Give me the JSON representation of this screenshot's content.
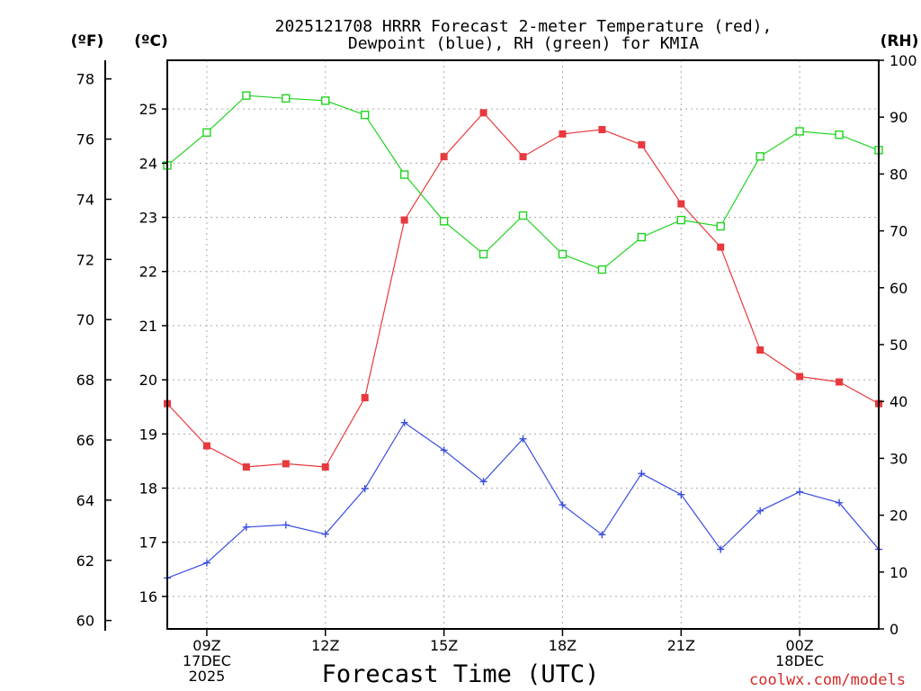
{
  "chart_data": {
    "type": "line",
    "title_lines": [
      "2025121708 HRRR Forecast 2-meter Temperature (red),",
      "Dewpoint (blue), RH (green) for KMIA"
    ],
    "xlabel": "Forecast Time (UTC)",
    "credit": "coolwx.com/models",
    "units": {
      "fahrenheit": "(ºF)",
      "celsius": "(ºC)",
      "rh": "(RH)"
    },
    "x_hours": [
      8,
      9,
      10,
      11,
      12,
      13,
      14,
      15,
      16,
      17,
      18,
      19,
      20,
      21,
      22,
      23,
      24,
      25,
      26
    ],
    "x_range": [
      8,
      26
    ],
    "x_ticks": [
      {
        "hour": 9,
        "lines": [
          "09Z",
          "17DEC",
          "2025"
        ]
      },
      {
        "hour": 12,
        "lines": [
          "12Z"
        ]
      },
      {
        "hour": 15,
        "lines": [
          "15Z"
        ]
      },
      {
        "hour": 18,
        "lines": [
          "18Z"
        ]
      },
      {
        "hour": 21,
        "lines": [
          "21Z"
        ]
      },
      {
        "hour": 24,
        "lines": [
          "00Z",
          "18DEC"
        ]
      }
    ],
    "celsius_range": [
      15.4,
      25.9
    ],
    "celsius_ticks": [
      16,
      17,
      18,
      19,
      20,
      21,
      22,
      23,
      24,
      25
    ],
    "fahrenheit_ticks": [
      60,
      62,
      64,
      66,
      68,
      70,
      72,
      74,
      76,
      78
    ],
    "rh_range": [
      0,
      100
    ],
    "rh_ticks": [
      0,
      10,
      20,
      30,
      40,
      50,
      60,
      70,
      80,
      90,
      100
    ],
    "colors": {
      "temperature": "#e8393d",
      "dewpoint": "#3a4fe0",
      "rh": "#20d420",
      "grid": "#aaaaaa",
      "axis": "#000000"
    },
    "series": [
      {
        "name": "Temperature",
        "units": "°C",
        "marker": "square-filled",
        "values": [
          19.56,
          18.78,
          18.39,
          18.45,
          18.39,
          19.67,
          22.95,
          24.12,
          24.93,
          24.12,
          24.54,
          24.62,
          24.34,
          23.25,
          22.45,
          20.55,
          20.06,
          19.96,
          19.56
        ]
      },
      {
        "name": "Dewpoint",
        "units": "°C",
        "marker": "plus",
        "values": [
          16.34,
          16.62,
          17.28,
          17.32,
          17.15,
          17.99,
          19.21,
          18.7,
          18.12,
          18.91,
          17.69,
          17.14,
          18.27,
          17.88,
          16.87,
          17.58,
          17.93,
          17.73,
          16.87
        ]
      },
      {
        "name": "RH",
        "units": "%",
        "marker": "square-open",
        "values": [
          81.5,
          87.3,
          93.8,
          93.3,
          92.9,
          90.4,
          79.9,
          71.7,
          65.9,
          72.7,
          65.9,
          63.2,
          68.9,
          71.9,
          70.8,
          83.1,
          87.5,
          86.9,
          84.2
        ]
      }
    ]
  }
}
